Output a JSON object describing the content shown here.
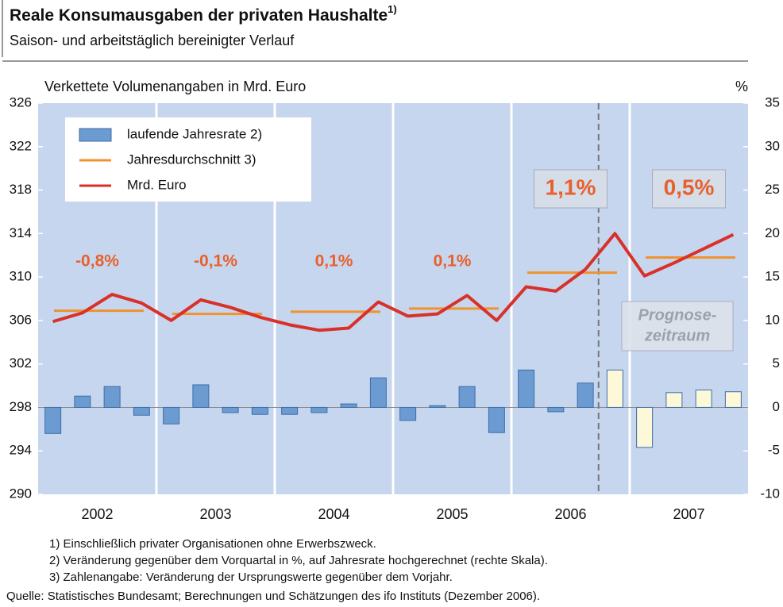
{
  "chart_data": {
    "type": "bar_line",
    "title": "Reale Konsumausgaben der privaten Haushalte",
    "title_note": "1)",
    "subtitle": "Saison- und arbeitstäglich bereinigter Verlauf",
    "y_label": "Verkettete Volumenangaben in Mrd. Euro",
    "y2_label": "%",
    "categories": [
      "2002",
      "2003",
      "2004",
      "2005",
      "2006",
      "2007"
    ],
    "ylim": [
      290,
      326
    ],
    "yticks": [
      290,
      294,
      298,
      302,
      306,
      310,
      314,
      318,
      322,
      326
    ],
    "y2lim": [
      -10,
      35
    ],
    "y2ticks": [
      -10,
      -5,
      0,
      5,
      10,
      15,
      20,
      25,
      30,
      35
    ],
    "series": [
      {
        "name": "laufende Jahresrate 2)",
        "axis": "y2",
        "color": "#6b9bd1",
        "values": [
          [
            -3.0,
            1.3,
            2.4,
            -0.9
          ],
          [
            -1.9,
            2.6,
            -0.6,
            -0.8
          ],
          [
            -0.8,
            -0.6,
            0.4,
            3.4
          ],
          [
            -1.5,
            0.2,
            2.4,
            -2.9
          ],
          [
            4.3,
            -0.5,
            2.8,
            4.3
          ],
          [
            -4.6,
            1.7,
            2.0,
            1.8
          ]
        ],
        "colors": [
          [
            "#6b9bd1",
            "#6b9bd1",
            "#6b9bd1",
            "#6b9bd1"
          ],
          [
            "#6b9bd1",
            "#6b9bd1",
            "#6b9bd1",
            "#6b9bd1"
          ],
          [
            "#6b9bd1",
            "#6b9bd1",
            "#6b9bd1",
            "#6b9bd1"
          ],
          [
            "#6b9bd1",
            "#6b9bd1",
            "#6b9bd1",
            "#6b9bd1"
          ],
          [
            "#6b9bd1",
            "#6b9bd1",
            "#6b9bd1",
            "#fdf8d8"
          ],
          [
            "#fdf8d8",
            "#fdf8d8",
            "#fdf8d8",
            "#fdf8d8"
          ]
        ]
      },
      {
        "name": "Jahresdurchschnitt 3)",
        "color": "#f0922e",
        "values": [
          306.9,
          306.6,
          306.8,
          307.1,
          310.4,
          311.8
        ]
      },
      {
        "name": "Mrd. Euro",
        "color": "#d9312a",
        "values": [
          [
            305.9,
            306.7,
            308.4,
            307.6
          ],
          [
            306.0,
            307.9,
            307.2,
            306.3
          ],
          [
            305.6,
            305.1,
            305.3,
            307.7
          ],
          [
            306.4,
            306.6,
            308.3,
            306.0
          ],
          [
            309.1,
            308.7,
            310.7,
            314.0
          ],
          [
            310.1,
            311.3,
            312.6,
            313.9
          ]
        ]
      }
    ],
    "annual_change": {
      "values": [
        -0.8,
        -0.1,
        0.1,
        0.1,
        1.1,
        0.5
      ],
      "value_labels": [
        "-0,8%",
        "-0,1%",
        "0,1%",
        "0,1%",
        "1,1%",
        "0,5%"
      ],
      "color": "#e8602c"
    },
    "forecast_label": [
      "Prognose-",
      "zeitraum"
    ],
    "footnotes": [
      "1) Einschließlich privater Organisationen ohne Erwerbszweck.",
      "2) Veränderung gegenüber dem Vorquartal in %, auf Jahresrate hochgerechnet (rechte Skala).",
      "3) Zahlenangabe: Veränderung der Ursprungswerte gegenüber dem Vorjahr."
    ],
    "source": "Quelle: Statistisches Bundesamt; Berechnungen und Schätzungen des ifo Instituts (Dezember 2006).",
    "background": "#c6d6ee"
  }
}
